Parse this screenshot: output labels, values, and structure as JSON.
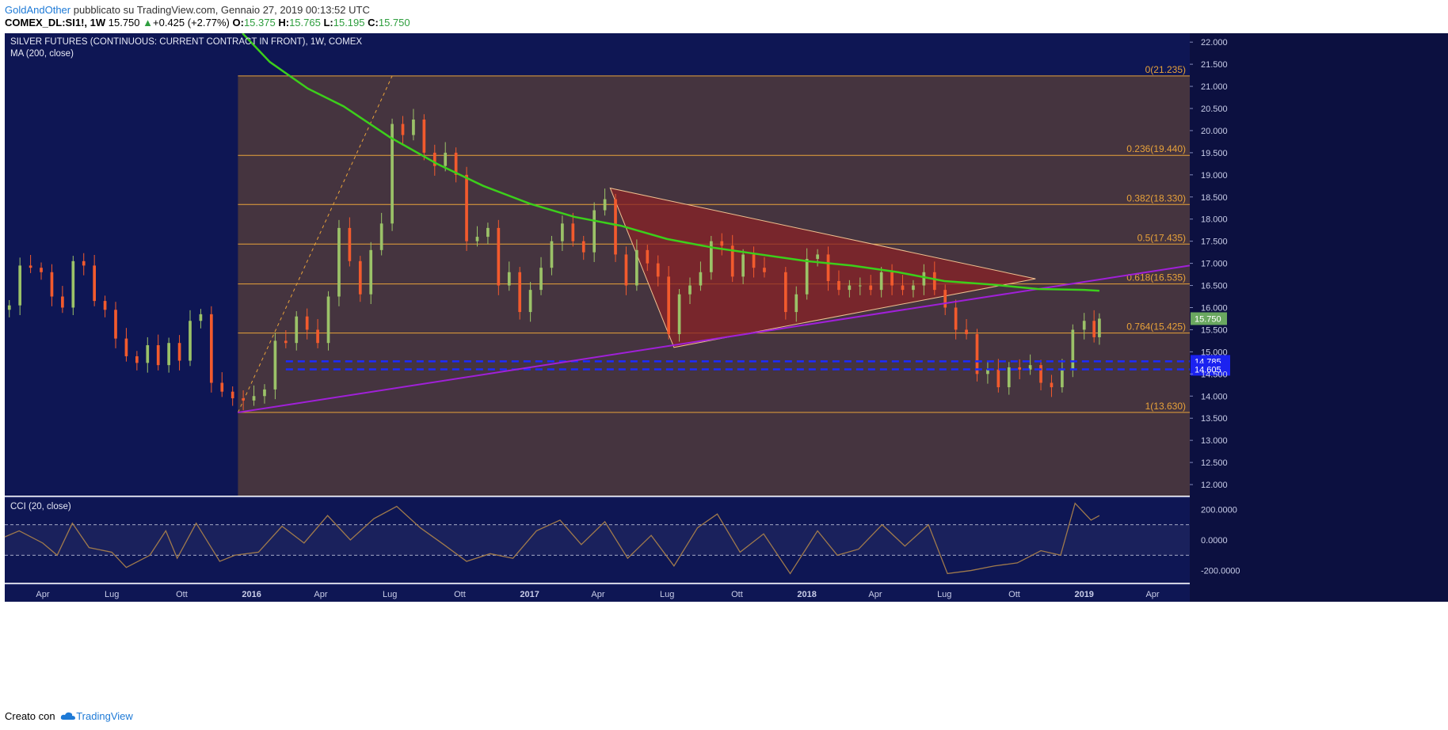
{
  "header": {
    "author": "GoldAndOther",
    "published_text": "pubblicato su TradingView.com, Gennaio 27, 2019 00:13:52 UTC",
    "symbol": "COMEX_DL:SI1!, 1W",
    "price": "15.750",
    "change_arrow": "▲",
    "change": "+0.425 (+2.77%)",
    "open_label": "O:",
    "open": "15.375",
    "high_label": "H:",
    "high": "15.765",
    "low_label": "L:",
    "low": "15.195",
    "close_label": "C:",
    "close": "15.750"
  },
  "footer": {
    "created_with": "Creato con",
    "brand": "TradingView"
  },
  "colors": {
    "background": "#0e1654",
    "fib_zone": "#45343f",
    "fib_line": "#e8a23a",
    "ma": "#3ccf1b",
    "trendline": "#a020d8",
    "triangle_fill": "#8a2227",
    "candle_up": "#9bc268",
    "candle_down": "#f25a2d",
    "support_dash": "#1c2bff",
    "price_badge": "#6aa860",
    "cci_line": "#a07a4c"
  },
  "chart_data": {
    "type": "candlestick",
    "title": "SILVER FUTURES (CONTINUOUS: CURRENT CONTRACT IN FRONT), 1W, COMEX",
    "indicator_label": "MA (200, close)",
    "interval": "1W",
    "ylim": [
      11.75,
      22.2
    ],
    "y_ticks": [
      "12.000",
      "12.500",
      "13.000",
      "13.500",
      "14.000",
      "14.500",
      "15.000",
      "15.500",
      "16.000",
      "16.500",
      "17.000",
      "17.500",
      "18.000",
      "18.500",
      "19.000",
      "19.500",
      "20.000",
      "20.500",
      "21.000",
      "21.500",
      "22.000"
    ],
    "x_ticks": [
      "Apr",
      "Lug",
      "Ott",
      "2016",
      "Apr",
      "Lug",
      "Ott",
      "2017",
      "Apr",
      "Lug",
      "Ott",
      "2018",
      "Apr",
      "Lug",
      "Ott",
      "2019",
      "Apr"
    ],
    "x_tick_dates": [
      "2015-04-01",
      "2015-07-01",
      "2015-10-01",
      "2016-01-01",
      "2016-04-01",
      "2016-07-01",
      "2016-10-01",
      "2017-01-01",
      "2017-04-01",
      "2017-07-01",
      "2017-10-01",
      "2018-01-01",
      "2018-04-01",
      "2018-07-01",
      "2018-10-01",
      "2019-01-01",
      "2019-04-01"
    ],
    "x_range": [
      "2015-02-10",
      "2019-05-20"
    ],
    "candles_weekly_close": [
      [
        "2015-02-16",
        16.05
      ],
      [
        "2015-03-02",
        16.95
      ],
      [
        "2015-03-16",
        16.9
      ],
      [
        "2015-03-30",
        16.8
      ],
      [
        "2015-04-13",
        16.25
      ],
      [
        "2015-04-27",
        16.0
      ],
      [
        "2015-05-11",
        17.05
      ],
      [
        "2015-05-25",
        16.95
      ],
      [
        "2015-06-08",
        16.15
      ],
      [
        "2015-06-22",
        15.95
      ],
      [
        "2015-07-06",
        15.3
      ],
      [
        "2015-07-20",
        14.9
      ],
      [
        "2015-08-03",
        14.75
      ],
      [
        "2015-08-17",
        15.15
      ],
      [
        "2015-08-31",
        14.7
      ],
      [
        "2015-09-14",
        15.2
      ],
      [
        "2015-09-28",
        14.8
      ],
      [
        "2015-10-12",
        15.7
      ],
      [
        "2015-10-26",
        15.85
      ],
      [
        "2015-11-09",
        14.3
      ],
      [
        "2015-11-23",
        14.1
      ],
      [
        "2015-12-07",
        13.95
      ],
      [
        "2015-12-21",
        13.9
      ],
      [
        "2016-01-04",
        14.0
      ],
      [
        "2016-01-18",
        14.15
      ],
      [
        "2016-02-01",
        15.25
      ],
      [
        "2016-02-15",
        15.2
      ],
      [
        "2016-02-29",
        15.8
      ],
      [
        "2016-03-14",
        15.5
      ],
      [
        "2016-03-28",
        15.2
      ],
      [
        "2016-04-11",
        16.25
      ],
      [
        "2016-04-25",
        17.8
      ],
      [
        "2016-05-09",
        17.05
      ],
      [
        "2016-05-23",
        16.3
      ],
      [
        "2016-06-06",
        17.3
      ],
      [
        "2016-06-20",
        17.9
      ],
      [
        "2016-07-04",
        20.15
      ],
      [
        "2016-07-18",
        19.9
      ],
      [
        "2016-08-01",
        20.25
      ],
      [
        "2016-08-15",
        19.5
      ],
      [
        "2016-08-29",
        19.2
      ],
      [
        "2016-09-12",
        19.5
      ],
      [
        "2016-09-26",
        19.0
      ],
      [
        "2016-10-10",
        17.5
      ],
      [
        "2016-10-24",
        17.6
      ],
      [
        "2016-11-07",
        17.8
      ],
      [
        "2016-11-21",
        16.5
      ],
      [
        "2016-12-05",
        16.8
      ],
      [
        "2016-12-19",
        15.9
      ],
      [
        "2017-01-02",
        16.4
      ],
      [
        "2017-01-16",
        16.9
      ],
      [
        "2017-01-30",
        17.5
      ],
      [
        "2017-02-13",
        17.9
      ],
      [
        "2017-02-27",
        17.5
      ],
      [
        "2017-03-13",
        17.25
      ],
      [
        "2017-03-27",
        18.2
      ],
      [
        "2017-04-10",
        18.45
      ],
      [
        "2017-04-24",
        17.2
      ],
      [
        "2017-05-08",
        16.5
      ],
      [
        "2017-05-22",
        17.3
      ],
      [
        "2017-06-05",
        17.0
      ],
      [
        "2017-06-19",
        16.7
      ],
      [
        "2017-07-03",
        15.4
      ],
      [
        "2017-07-17",
        16.3
      ],
      [
        "2017-07-31",
        16.5
      ],
      [
        "2017-08-14",
        16.8
      ],
      [
        "2017-08-28",
        17.5
      ],
      [
        "2017-09-11",
        17.4
      ],
      [
        "2017-09-25",
        16.7
      ],
      [
        "2017-10-09",
        17.2
      ],
      [
        "2017-10-23",
        16.9
      ],
      [
        "2017-11-06",
        16.8
      ],
      [
        "2017-12-04",
        15.9
      ],
      [
        "2017-12-18",
        16.3
      ],
      [
        "2018-01-01",
        17.1
      ],
      [
        "2018-01-15",
        17.2
      ],
      [
        "2018-01-29",
        16.6
      ],
      [
        "2018-02-12",
        16.4
      ],
      [
        "2018-02-26",
        16.5
      ],
      [
        "2018-03-12",
        16.5
      ],
      [
        "2018-03-26",
        16.4
      ],
      [
        "2018-04-09",
        16.8
      ],
      [
        "2018-04-23",
        16.5
      ],
      [
        "2018-05-07",
        16.4
      ],
      [
        "2018-05-21",
        16.5
      ],
      [
        "2018-06-04",
        16.8
      ],
      [
        "2018-06-18",
        16.4
      ],
      [
        "2018-07-02",
        16.0
      ],
      [
        "2018-07-16",
        15.5
      ],
      [
        "2018-07-30",
        15.4
      ],
      [
        "2018-08-13",
        14.5
      ],
      [
        "2018-08-27",
        14.6
      ],
      [
        "2018-09-10",
        14.2
      ],
      [
        "2018-09-24",
        14.65
      ],
      [
        "2018-10-08",
        14.6
      ],
      [
        "2018-10-22",
        14.7
      ],
      [
        "2018-11-05",
        14.3
      ],
      [
        "2018-11-19",
        14.2
      ],
      [
        "2018-12-03",
        14.6
      ],
      [
        "2018-12-17",
        15.5
      ],
      [
        "2019-01-01",
        15.7
      ],
      [
        "2019-01-14",
        15.33
      ],
      [
        "2019-01-21",
        15.75
      ]
    ],
    "ma_200": [
      [
        "2015-12-20",
        22.2
      ],
      [
        "2016-01-25",
        21.55
      ],
      [
        "2016-03-15",
        20.95
      ],
      [
        "2016-05-01",
        20.55
      ],
      [
        "2016-07-01",
        19.85
      ],
      [
        "2016-09-01",
        19.25
      ],
      [
        "2016-11-01",
        18.75
      ],
      [
        "2017-01-01",
        18.35
      ],
      [
        "2017-03-01",
        18.05
      ],
      [
        "2017-05-01",
        17.85
      ],
      [
        "2017-07-01",
        17.55
      ],
      [
        "2017-09-01",
        17.35
      ],
      [
        "2017-11-01",
        17.2
      ],
      [
        "2018-01-01",
        17.05
      ],
      [
        "2018-03-01",
        16.95
      ],
      [
        "2018-05-01",
        16.8
      ],
      [
        "2018-07-01",
        16.6
      ],
      [
        "2018-09-01",
        16.52
      ],
      [
        "2018-11-01",
        16.42
      ],
      [
        "2019-01-01",
        16.4
      ],
      [
        "2019-01-21",
        16.38
      ]
    ],
    "fibonacci": {
      "levels": [
        {
          "label": "0(21.235)",
          "value": 21.235
        },
        {
          "label": "0.236(19.440)",
          "value": 19.44
        },
        {
          "label": "0.382(18.330)",
          "value": 18.33
        },
        {
          "label": "0.5(17.435)",
          "value": 17.435
        },
        {
          "label": "0.618(16.535)",
          "value": 16.535
        },
        {
          "label": "0.764(15.425)",
          "value": 15.425
        },
        {
          "label": "1(13.630)",
          "value": 13.63
        }
      ],
      "anchor_low": [
        "2015-12-14",
        13.63
      ],
      "anchor_high": [
        "2016-07-04",
        21.235
      ]
    },
    "trendline": [
      [
        "2015-12-14",
        13.63
      ],
      [
        "2019-05-20",
        16.95
      ]
    ],
    "triangle": [
      [
        "2017-04-17",
        18.7
      ],
      [
        "2017-07-10",
        15.1
      ],
      [
        "2018-10-29",
        16.65
      ]
    ],
    "support_levels": [
      {
        "label": "14.785",
        "value": 14.785
      },
      {
        "label": "14.605",
        "value": 14.605
      }
    ],
    "current_price": {
      "label": "15.750",
      "value": 15.75
    },
    "cci": {
      "label": "CCI (20, close)",
      "ylim": [
        -280,
        280
      ],
      "ticks": [
        "200.0000",
        "0.0000",
        "-200.0000"
      ],
      "bands": [
        100,
        -100
      ],
      "values": [
        [
          "2015-02-10",
          20
        ],
        [
          "2015-03-01",
          60
        ],
        [
          "2015-04-01",
          -20
        ],
        [
          "2015-04-20",
          -100
        ],
        [
          "2015-05-10",
          110
        ],
        [
          "2015-06-01",
          -50
        ],
        [
          "2015-07-01",
          -80
        ],
        [
          "2015-07-20",
          -180
        ],
        [
          "2015-08-20",
          -100
        ],
        [
          "2015-09-10",
          60
        ],
        [
          "2015-09-25",
          -120
        ],
        [
          "2015-10-20",
          110
        ],
        [
          "2015-11-20",
          -140
        ],
        [
          "2015-12-10",
          -100
        ],
        [
          "2016-01-10",
          -80
        ],
        [
          "2016-02-10",
          90
        ],
        [
          "2016-03-10",
          -20
        ],
        [
          "2016-04-10",
          160
        ],
        [
          "2016-05-10",
          0
        ],
        [
          "2016-06-10",
          140
        ],
        [
          "2016-07-10",
          220
        ],
        [
          "2016-08-10",
          80
        ],
        [
          "2016-09-10",
          -30
        ],
        [
          "2016-10-10",
          -140
        ],
        [
          "2016-11-10",
          -90
        ],
        [
          "2016-12-10",
          -120
        ],
        [
          "2017-01-10",
          60
        ],
        [
          "2017-02-10",
          130
        ],
        [
          "2017-03-10",
          -30
        ],
        [
          "2017-04-10",
          120
        ],
        [
          "2017-05-10",
          -120
        ],
        [
          "2017-06-10",
          30
        ],
        [
          "2017-07-10",
          -170
        ],
        [
          "2017-08-10",
          80
        ],
        [
          "2017-09-05",
          170
        ],
        [
          "2017-10-05",
          -80
        ],
        [
          "2017-11-05",
          40
        ],
        [
          "2017-12-10",
          -220
        ],
        [
          "2018-01-15",
          60
        ],
        [
          "2018-02-10",
          -100
        ],
        [
          "2018-03-10",
          -60
        ],
        [
          "2018-04-10",
          100
        ],
        [
          "2018-05-10",
          -40
        ],
        [
          "2018-06-10",
          100
        ],
        [
          "2018-07-05",
          -220
        ],
        [
          "2018-08-05",
          -200
        ],
        [
          "2018-09-05",
          -170
        ],
        [
          "2018-10-05",
          -150
        ],
        [
          "2018-11-05",
          -70
        ],
        [
          "2018-12-01",
          -100
        ],
        [
          "2018-12-20",
          240
        ],
        [
          "2019-01-10",
          130
        ],
        [
          "2019-01-21",
          160
        ]
      ]
    }
  }
}
